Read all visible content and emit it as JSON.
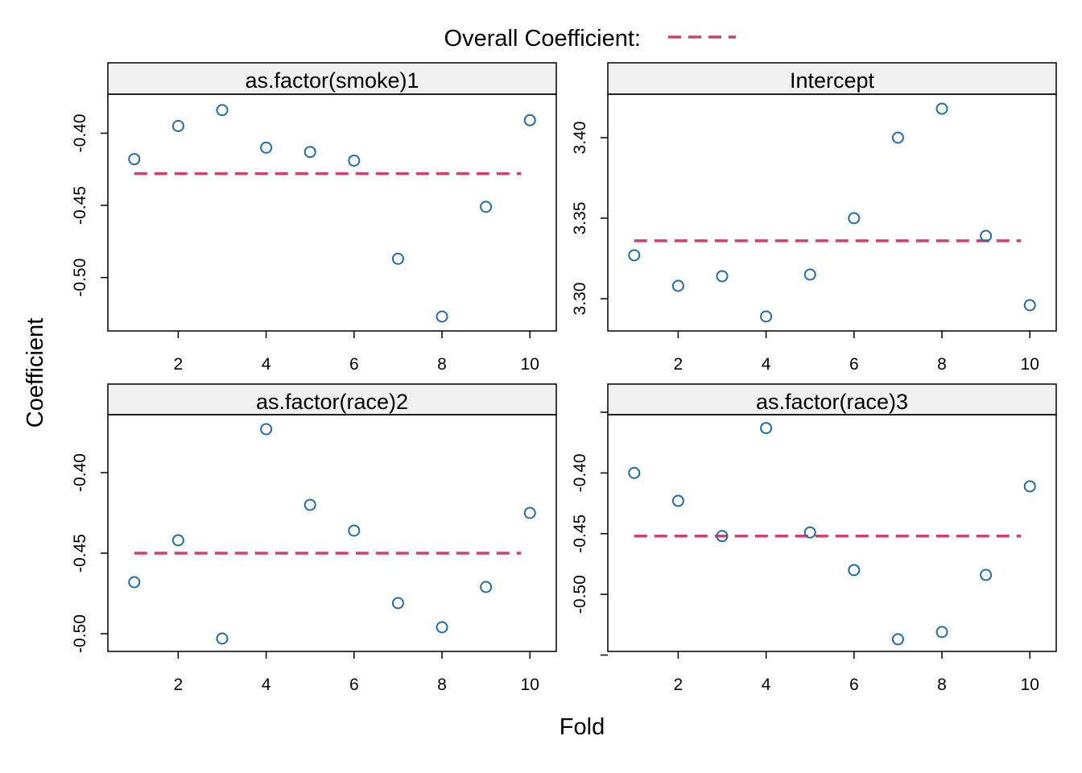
{
  "legend": {
    "label": "Overall Coefficient:",
    "line_color": "#d33f6a",
    "line_style": "dashed"
  },
  "axes": {
    "xlabel": "Fold",
    "ylabel": "Coefficient"
  },
  "colors": {
    "points": "#1f6bab",
    "overall_line": "#d33f6a",
    "strip_fill": "#f0f0f0"
  },
  "chart_data": [
    {
      "type": "scatter",
      "title": "as.factor(smoke)1",
      "x": [
        1,
        2,
        3,
        4,
        5,
        6,
        7,
        8,
        9,
        10
      ],
      "y": [
        -0.418,
        -0.395,
        -0.384,
        -0.41,
        -0.413,
        -0.419,
        -0.487,
        -0.527,
        -0.451,
        -0.391
      ],
      "overall": -0.428,
      "xlim": [
        0.4,
        10.6
      ],
      "ylim": [
        -0.537,
        -0.373
      ],
      "xticks": [
        2,
        4,
        6,
        8,
        10
      ],
      "yticks": [
        -0.5,
        -0.45,
        -0.4
      ],
      "ytick_labels": [
        "-0.50",
        "-0.45",
        "-0.40"
      ]
    },
    {
      "type": "scatter",
      "title": "Intercept",
      "x": [
        1,
        2,
        3,
        4,
        5,
        6,
        7,
        8,
        9,
        10
      ],
      "y": [
        3.327,
        3.308,
        3.314,
        3.289,
        3.315,
        3.35,
        3.4,
        3.418,
        3.339,
        3.296
      ],
      "overall": 3.336,
      "xlim": [
        0.4,
        10.6
      ],
      "ylim": [
        3.28,
        3.427
      ],
      "xticks": [
        2,
        4,
        6,
        8,
        10
      ],
      "yticks": [
        3.3,
        3.35,
        3.4
      ],
      "ytick_labels": [
        "3.30",
        "3.35",
        "3.40"
      ]
    },
    {
      "type": "scatter",
      "title": "as.factor(race)2",
      "x": [
        1,
        2,
        3,
        4,
        5,
        6,
        7,
        8,
        9,
        10
      ],
      "y": [
        -0.468,
        -0.442,
        -0.503,
        -0.373,
        -0.42,
        -0.436,
        -0.481,
        -0.496,
        -0.471,
        -0.425
      ],
      "overall": -0.45,
      "xlim": [
        0.4,
        10.6
      ],
      "ylim": [
        -0.511,
        -0.364
      ],
      "xticks": [
        2,
        4,
        6,
        8,
        10
      ],
      "yticks": [
        -0.5,
        -0.45,
        -0.4
      ],
      "ytick_labels": [
        "-0.50",
        "-0.45",
        "-0.40"
      ]
    },
    {
      "type": "scatter",
      "title": "as.factor(race)3",
      "x": [
        1,
        2,
        3,
        4,
        5,
        6,
        7,
        8,
        9,
        10
      ],
      "y": [
        -0.4,
        -0.423,
        -0.452,
        -0.363,
        -0.449,
        -0.48,
        -0.537,
        -0.531,
        -0.484,
        -0.411
      ],
      "overall": -0.452,
      "xlim": [
        0.4,
        10.6
      ],
      "ylim": [
        -0.547,
        -0.352
      ],
      "xticks": [
        2,
        4,
        6,
        8,
        10
      ],
      "yticks": [
        -0.5,
        -0.45,
        -0.4
      ],
      "ytick_labels": [
        "-0.50",
        "-0.45",
        "-0.40"
      ],
      "extra_yticks": [
        -0.55,
        -0.35
      ]
    }
  ]
}
